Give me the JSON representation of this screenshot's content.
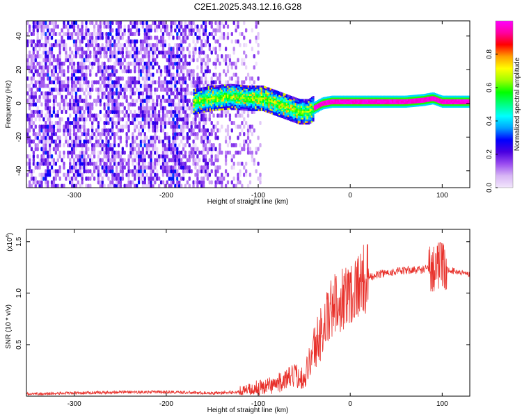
{
  "chart_data": [
    {
      "type": "heatmap",
      "title": "C2E1.2025.343.12.16.G28",
      "xlabel": "Height of straight line (km)",
      "ylabel": "Frequency (Hz)",
      "xlim": [
        -352,
        130
      ],
      "ylim": [
        -50,
        49
      ],
      "x_ticks": [
        -300,
        -200,
        -100,
        0,
        100
      ],
      "x_tick_labels": [
        "-300",
        "-200",
        "-100",
        "0",
        "100"
      ],
      "y_ticks": [
        -40,
        -20,
        0,
        20,
        40
      ],
      "y_tick_labels": [
        "-40",
        "-20",
        "0",
        "20",
        "40"
      ],
      "ridge": {
        "description": "dominant frequency track",
        "x": [
          -170,
          -150,
          -130,
          -110,
          -95,
          -85,
          -75,
          -65,
          -55,
          -45,
          -40,
          -30,
          -20,
          -10,
          0,
          20,
          40,
          60,
          80,
          90,
          100,
          130
        ],
        "freq": [
          1,
          3,
          4,
          3,
          3,
          1,
          -1,
          -3,
          -5,
          -5,
          -3,
          0,
          1,
          1,
          1,
          1,
          1,
          1,
          2,
          3,
          1,
          1
        ]
      },
      "noise_region_x": [
        -352,
        -110
      ],
      "colorbar": {
        "label": "Normalized spectral amplitude",
        "range": [
          0,
          1
        ],
        "ticks": [
          0.0,
          0.2,
          0.4,
          0.6,
          0.8
        ],
        "tick_labels": [
          "0.0",
          "0.2",
          "0.4",
          "0.6",
          "0.8"
        ],
        "colors": [
          "#f2e6fc",
          "#d7b5f5",
          "#9a4cf0",
          "#4a00e0",
          "#0000ff",
          "#00a0ff",
          "#00ffff",
          "#00ff80",
          "#00ff00",
          "#a0ff00",
          "#ffff00",
          "#ffa000",
          "#ff0000",
          "#ff00a0",
          "#ff00ff"
        ]
      }
    },
    {
      "type": "line",
      "xlabel": "Height of straight line (km)",
      "ylabel": "SNR (10 * v/v)",
      "y_scale_label": "(x10",
      "y_scale_exponent": "4",
      "xlim": [
        -352,
        130
      ],
      "ylim": [
        0,
        1.62
      ],
      "x_ticks": [
        -300,
        -200,
        -100,
        0,
        100
      ],
      "x_tick_labels": [
        "-300",
        "-200",
        "-100",
        "0",
        "100"
      ],
      "y_ticks": [
        0.5,
        1.0,
        1.5
      ],
      "y_tick_labels": [
        "0.5",
        "1.0",
        "1.5"
      ],
      "color": "#e8302a",
      "series": [
        {
          "name": "SNR",
          "x": [
            -352,
            -300,
            -250,
            -200,
            -150,
            -120,
            -100,
            -80,
            -60,
            -50,
            -40,
            -30,
            -20,
            -10,
            0,
            10,
            20,
            30,
            40,
            60,
            80,
            90,
            95,
            100,
            110,
            120,
            130
          ],
          "y": [
            0.02,
            0.03,
            0.04,
            0.04,
            0.03,
            0.04,
            0.08,
            0.12,
            0.2,
            0.18,
            0.45,
            0.65,
            0.85,
            0.95,
            1.0,
            1.1,
            1.15,
            1.18,
            1.2,
            1.22,
            1.23,
            1.25,
            1.3,
            1.24,
            1.22,
            1.2,
            1.19
          ]
        }
      ]
    }
  ]
}
